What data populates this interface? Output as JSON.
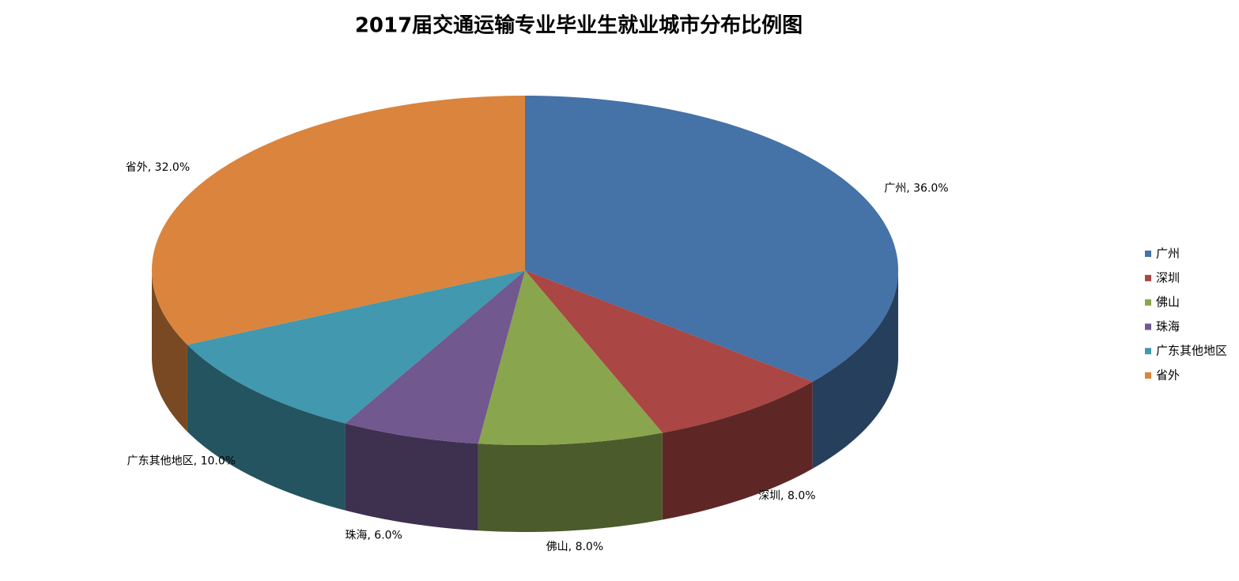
{
  "chart_data": {
    "type": "pie3d",
    "title": "2017届交通运输专业毕业生就业城市分布比例图",
    "categories": [
      "广州",
      "深圳",
      "佛山",
      "珠海",
      "广东其他地区",
      "省外"
    ],
    "values": [
      36,
      8,
      8,
      6,
      10,
      32
    ],
    "value_labels": [
      "广州, 36.0%",
      "深圳, 8.0%",
      "佛山, 8.0%",
      "珠海, 6.0%",
      "广东其他地区, 10.0%",
      "省外, 32.0%"
    ],
    "colors": [
      "#4572a7",
      "#aa4643",
      "#89a54e",
      "#71588f",
      "#4198af",
      "#db843d"
    ],
    "legend": "right"
  }
}
